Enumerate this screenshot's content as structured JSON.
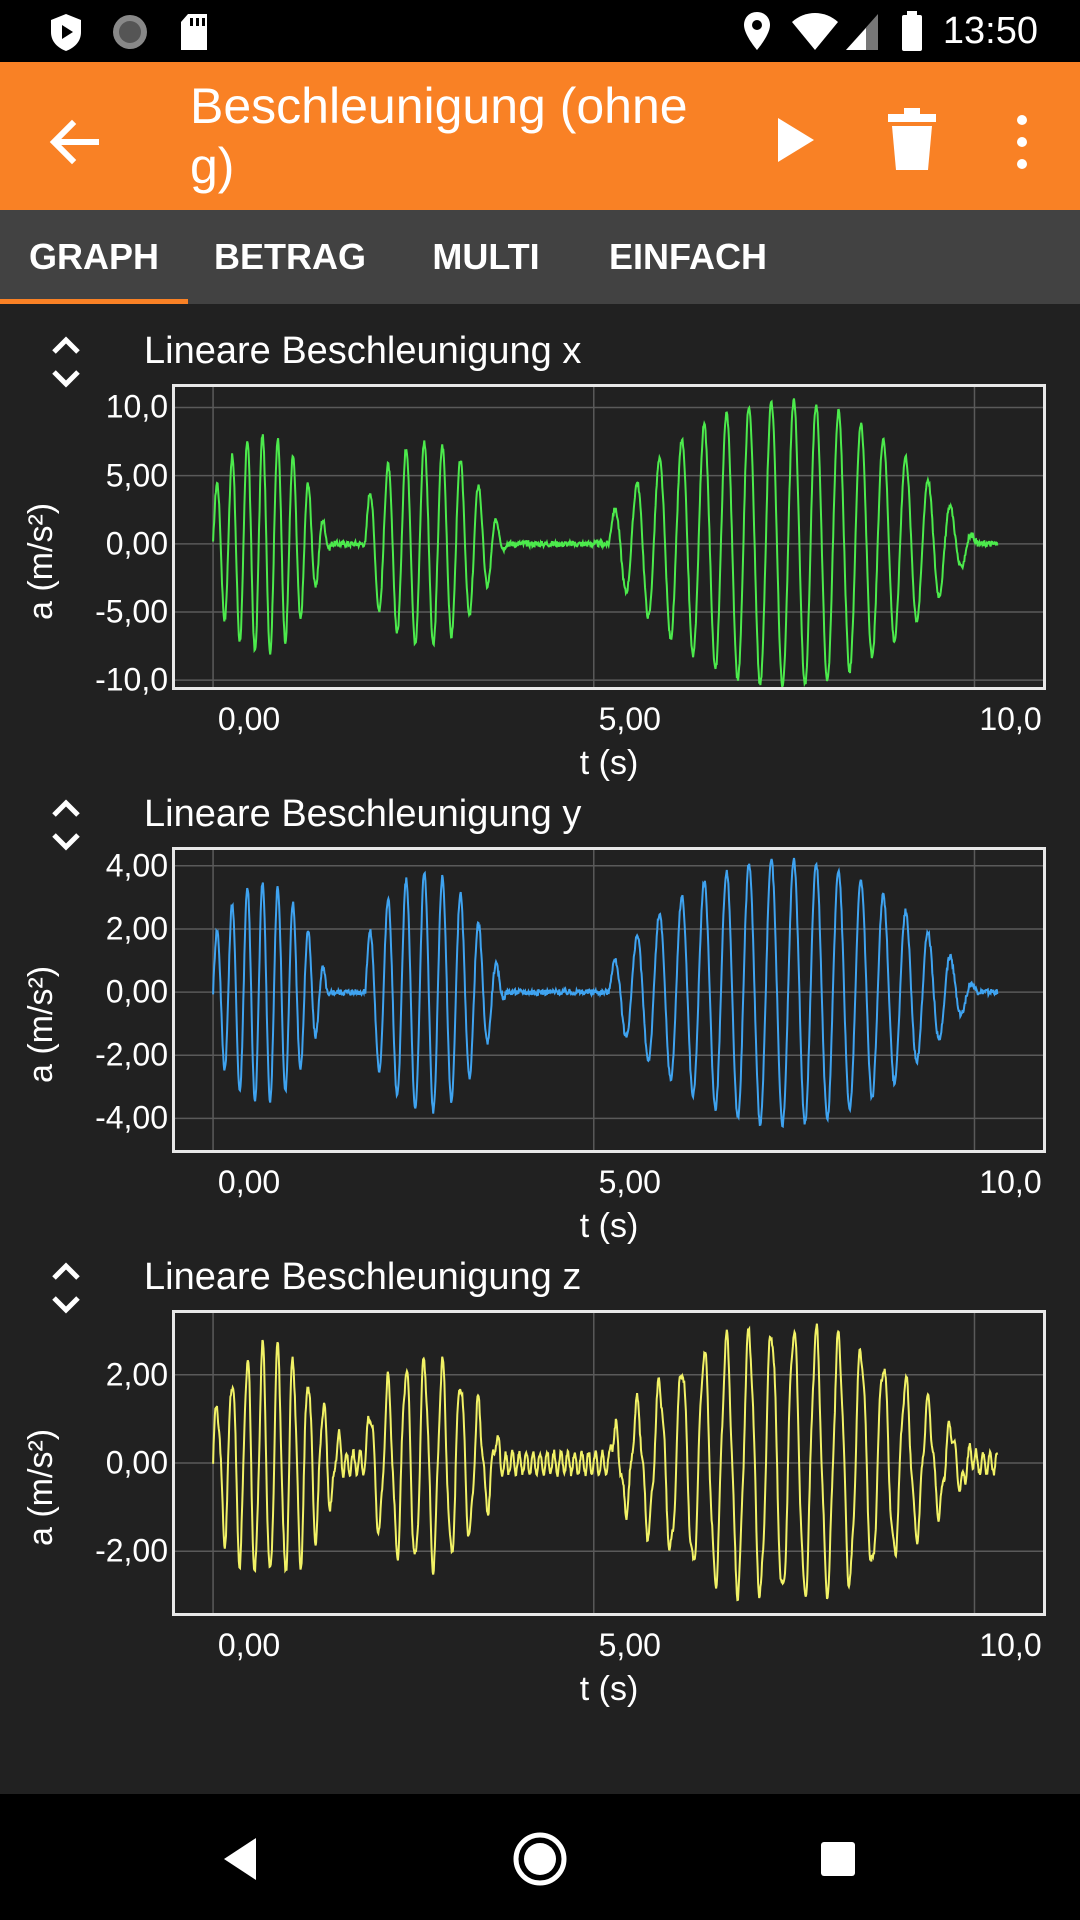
{
  "status_bar": {
    "time": "13:50",
    "icons": [
      "shield-icon",
      "sync-icon",
      "sd-card-icon",
      "location-icon",
      "wifi-icon",
      "signal-icon",
      "battery-icon"
    ]
  },
  "app_bar": {
    "title": "Beschleunigung (ohne g)",
    "back_icon": "arrow-back-icon",
    "actions": [
      "play-icon",
      "delete-icon",
      "more-vert-icon"
    ],
    "color": "#f98125"
  },
  "tabs": [
    {
      "label": "GRAPH",
      "active": true
    },
    {
      "label": "BETRAG",
      "active": false
    },
    {
      "label": "MULTI",
      "active": false
    },
    {
      "label": "EINFACH",
      "active": false
    }
  ],
  "charts": [
    {
      "title": "Lineare Beschleunigung x",
      "ylabel": "a (m/s²)",
      "xlabel": "t (s)",
      "yticks": [
        "10,0",
        "5,00",
        "0,00",
        "-5,00",
        "-10,0"
      ],
      "xticks": [
        "0,00",
        "5,00",
        "10,0"
      ],
      "color": "#4cea4c"
    },
    {
      "title": "Lineare Beschleunigung y",
      "ylabel": "a (m/s²)",
      "xlabel": "t (s)",
      "yticks": [
        "4,00",
        "2,00",
        "0,00",
        "-2,00",
        "-4,00"
      ],
      "xticks": [
        "0,00",
        "5,00",
        "10,0"
      ],
      "color": "#3fa3f0"
    },
    {
      "title": "Lineare Beschleunigung z",
      "ylabel": "a (m/s²)",
      "xlabel": "t (s)",
      "yticks": [
        "2,00",
        "0,00",
        "-2,00"
      ],
      "xticks": [
        "0,00",
        "5,00",
        "10,0"
      ],
      "color": "#f2f266"
    }
  ],
  "chart_data": [
    {
      "type": "line",
      "title": "Lineare Beschleunigung x",
      "xlabel": "t (s)",
      "ylabel": "a (m/s²)",
      "xlim": [
        -0.5,
        10.9
      ],
      "ylim": [
        -10.5,
        11.5
      ],
      "grid": true,
      "series": [
        {
          "color": "#4cea4c",
          "bursts": [
            {
              "start": 0.0,
              "end": 1.3,
              "amplitude": 8.0,
              "frequency": 5.0
            },
            {
              "start": 2.0,
              "end": 3.6,
              "amplitude": 7.5,
              "frequency": 4.2
            },
            {
              "start": 5.2,
              "end": 9.8,
              "amplitude": 10.5,
              "frequency": 3.4
            }
          ]
        }
      ]
    },
    {
      "type": "line",
      "title": "Lineare Beschleunigung y",
      "xlabel": "t (s)",
      "ylabel": "a (m/s²)",
      "xlim": [
        -0.5,
        10.9
      ],
      "ylim": [
        -5.0,
        4.5
      ],
      "grid": true,
      "series": [
        {
          "color": "#3fa3f0",
          "bursts": [
            {
              "start": 0.0,
              "end": 1.3,
              "amplitude": 3.5,
              "frequency": 5.0
            },
            {
              "start": 2.0,
              "end": 3.6,
              "amplitude": 3.8,
              "frequency": 4.2
            },
            {
              "start": 5.2,
              "end": 9.8,
              "amplitude": 4.2,
              "frequency": 3.4
            }
          ]
        }
      ]
    },
    {
      "type": "line",
      "title": "Lineare Beschleunigung z",
      "xlabel": "t (s)",
      "ylabel": "a (m/s²)",
      "xlim": [
        -0.5,
        10.9
      ],
      "ylim": [
        -3.4,
        3.4
      ],
      "grid": true,
      "series": [
        {
          "color": "#f2f266",
          "bursts": [
            {
              "start": 0.0,
              "end": 1.5,
              "amplitude": 2.6,
              "frequency": 5.0
            },
            {
              "start": 2.0,
              "end": 3.6,
              "amplitude": 2.3,
              "frequency": 4.2
            },
            {
              "start": 5.2,
              "end": 9.8,
              "amplitude": 3.0,
              "frequency": 3.4
            }
          ]
        }
      ]
    }
  ],
  "nav_bar": {
    "buttons": [
      "back-triangle-icon",
      "home-circle-icon",
      "recents-square-icon"
    ]
  }
}
